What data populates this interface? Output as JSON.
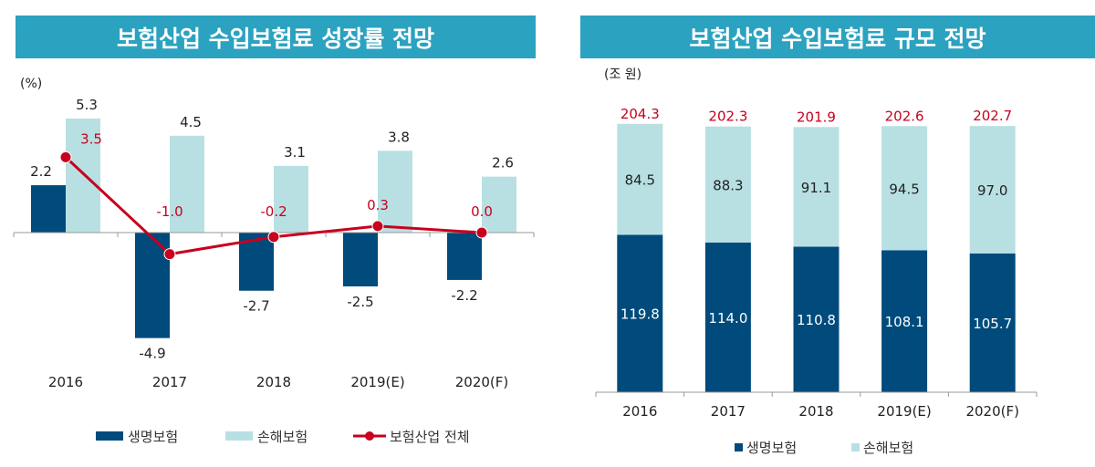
{
  "chart_data": [
    {
      "type": "bar+line",
      "title": "보험산업 수입보험료 성장률 전망",
      "ylabel": "(%)",
      "categories": [
        "2016",
        "2017",
        "2018",
        "2019(E)",
        "2020(F)"
      ],
      "series": [
        {
          "name": "생명보험",
          "type": "bar",
          "color": "#004a7c",
          "values": [
            2.2,
            -4.9,
            -2.7,
            -2.5,
            -2.2
          ]
        },
        {
          "name": "손해보험",
          "type": "bar",
          "color": "#b8e0e3",
          "values": [
            5.3,
            4.5,
            3.1,
            3.8,
            2.6
          ]
        },
        {
          "name": "보험산업 전체",
          "type": "line",
          "color": "#c8001e",
          "values": [
            3.5,
            -1.0,
            -0.2,
            0.3,
            0.0
          ]
        }
      ],
      "legend": "bottom",
      "grid": false
    },
    {
      "type": "stacked-bar",
      "title": "보험산업 수입보험료 규모 전망",
      "ylabel": "(조 원)",
      "categories": [
        "2016",
        "2017",
        "2018",
        "2019(E)",
        "2020(F)"
      ],
      "totals": [
        204.3,
        202.3,
        201.9,
        202.6,
        202.7
      ],
      "total_color": "#c8001e",
      "series": [
        {
          "name": "생명보험",
          "color": "#004a7c",
          "values": [
            119.8,
            114.0,
            110.8,
            108.1,
            105.7
          ]
        },
        {
          "name": "손해보험",
          "color": "#b8e0e3",
          "values": [
            84.5,
            88.3,
            91.1,
            94.5,
            97.0
          ]
        }
      ],
      "legend": "bottom",
      "grid": false
    }
  ]
}
